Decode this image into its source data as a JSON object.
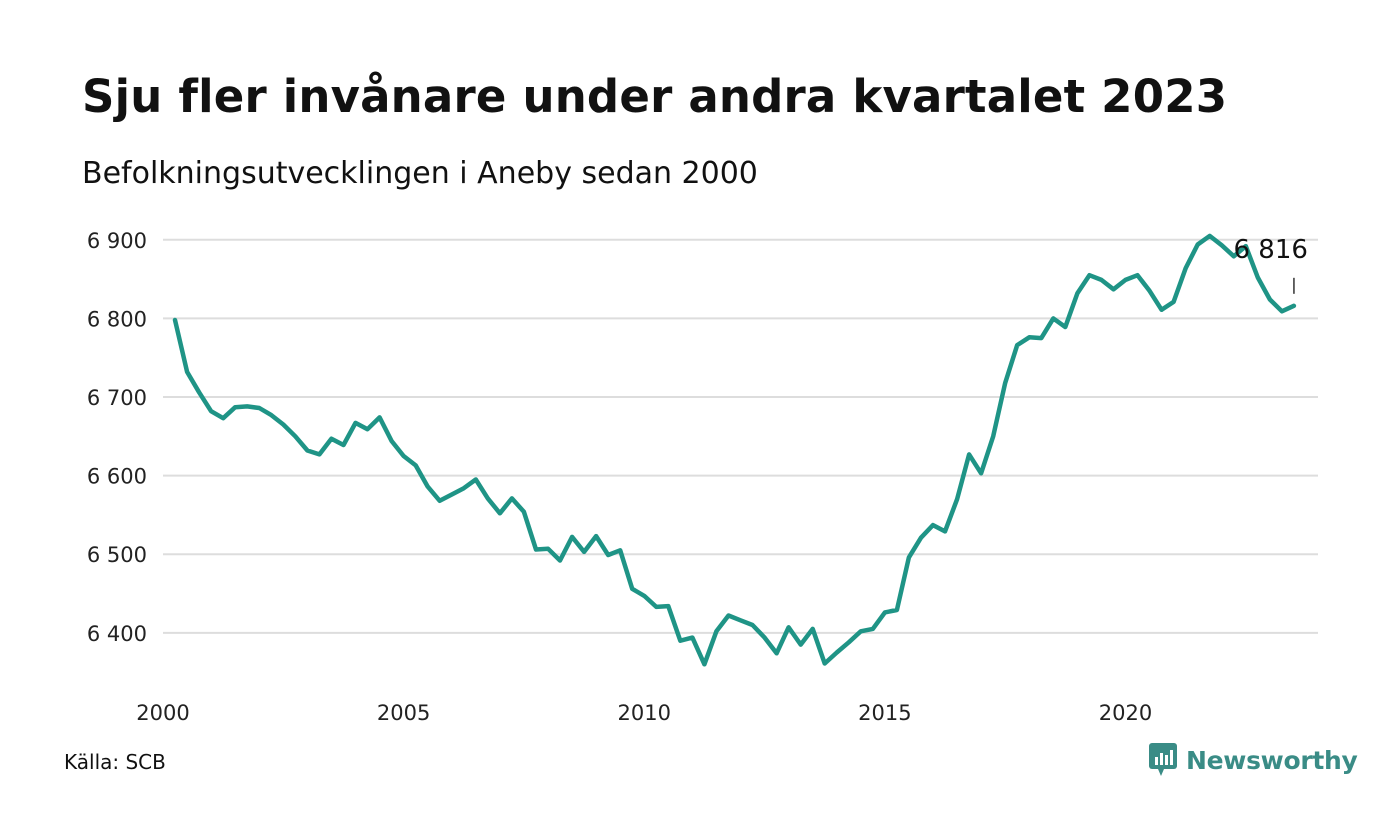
{
  "header": {
    "title": "Sju fler invånare under andra kvartalet 2023",
    "subtitle": "Befolkningsutvecklingen i Aneby sedan 2000"
  },
  "footer": {
    "source": "Källa: SCB",
    "brand": "Newsworthy",
    "brand_icon": "newsworthy-logo-icon",
    "brand_color": "#3a8c86"
  },
  "chart_data": {
    "type": "line",
    "title": "Sju fler invånare under andra kvartalet 2023",
    "subtitle": "Befolkningsutvecklingen i Aneby sedan 2000",
    "xlabel": "",
    "ylabel": "",
    "xlim": [
      2000,
      2024
    ],
    "ylim": [
      6340,
      6915
    ],
    "x_ticks": [
      2000,
      2005,
      2010,
      2015,
      2020
    ],
    "x_tick_labels": [
      "2000",
      "2005",
      "2010",
      "2015",
      "2020"
    ],
    "y_ticks": [
      6400,
      6500,
      6600,
      6700,
      6800,
      6900
    ],
    "y_tick_labels": [
      "6 400",
      "6 500",
      "6 600",
      "6 700",
      "6 800",
      "6 900"
    ],
    "grid": "horizontal",
    "color": "#1f9486",
    "end_label": "6 816",
    "series": [
      {
        "name": "",
        "x": [
          2000.25,
          2000.5,
          2000.75,
          2001.0,
          2001.25,
          2001.5,
          2001.75,
          2002.0,
          2002.25,
          2002.5,
          2002.75,
          2003.0,
          2003.25,
          2003.5,
          2003.75,
          2004.0,
          2004.25,
          2004.5,
          2004.75,
          2005.0,
          2005.25,
          2005.5,
          2005.75,
          2006.0,
          2006.25,
          2006.5,
          2006.75,
          2007.0,
          2007.25,
          2007.5,
          2007.75,
          2008.0,
          2008.25,
          2008.5,
          2008.75,
          2009.0,
          2009.25,
          2009.5,
          2009.75,
          2010.0,
          2010.25,
          2010.5,
          2010.75,
          2011.0,
          2011.25,
          2011.5,
          2011.75,
          2012.0,
          2012.25,
          2012.5,
          2012.75,
          2013.0,
          2013.25,
          2013.5,
          2013.75,
          2014.0,
          2014.25,
          2014.5,
          2014.75,
          2015.0,
          2015.25,
          2015.5,
          2015.75,
          2016.0,
          2016.25,
          2016.5,
          2016.75,
          2017.0,
          2017.25,
          2017.5,
          2017.75,
          2018.0,
          2018.25,
          2018.5,
          2018.75,
          2019.0,
          2019.25,
          2019.5,
          2019.75,
          2020.0,
          2020.25,
          2020.5,
          2020.75,
          2021.0,
          2021.25,
          2021.5,
          2021.75,
          2022.0,
          2022.25,
          2022.5,
          2022.75,
          2023.0,
          2023.25,
          2023.5
        ],
        "values": [
          6798,
          6732,
          6706,
          6682,
          6673,
          6687,
          6688,
          6686,
          6677,
          6665,
          6650,
          6632,
          6627,
          6647,
          6639,
          6667,
          6659,
          6674,
          6644,
          6625,
          6613,
          6586,
          6568,
          6576,
          6584,
          6595,
          6571,
          6552,
          6571,
          6554,
          6506,
          6507,
          6492,
          6522,
          6503,
          6523,
          6499,
          6505,
          6456,
          6447,
          6433,
          6434,
          6390,
          6394,
          6360,
          6402,
          6422,
          6416,
          6410,
          6394,
          6374,
          6407,
          6385,
          6405,
          6361,
          6375,
          6388,
          6402,
          6405,
          6426,
          6429,
          6496,
          6521,
          6537,
          6529,
          6570,
          6627,
          6603,
          6650,
          6718,
          6766,
          6776,
          6775,
          6800,
          6789,
          6832,
          6855,
          6849,
          6837,
          6849,
          6855,
          6835,
          6811,
          6821,
          6864,
          6894,
          6905,
          6893,
          6879,
          6892,
          6852,
          6824,
          6809,
          6816
        ]
      }
    ]
  }
}
